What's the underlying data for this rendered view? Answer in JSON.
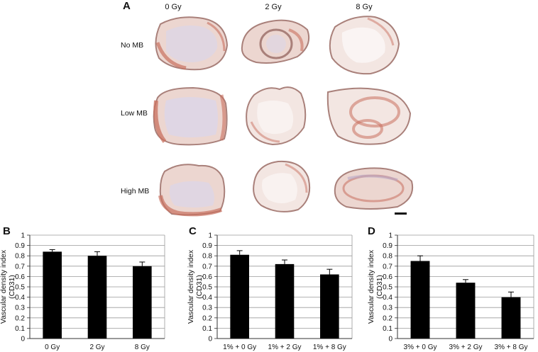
{
  "panel_a": {
    "letter": "A",
    "columns": [
      "0 Gy",
      "2 Gy",
      "8 Gy"
    ],
    "rows": [
      "No MB",
      "Low MB",
      "High MB"
    ]
  },
  "chart_data": [
    {
      "panel": "B",
      "type": "bar",
      "categories": [
        "0 Gy",
        "2 Gy",
        "8 Gy"
      ],
      "values": [
        0.84,
        0.8,
        0.7
      ],
      "errors": [
        0.02,
        0.04,
        0.04
      ],
      "ylabel": "Vascular density index (CD31)",
      "ylim": [
        0,
        1
      ],
      "yticks": [
        "0",
        "0.1",
        "0.2",
        "0.3",
        "0.4",
        "0.5",
        "0.6",
        "0.7",
        "0.8",
        "0.9",
        "1"
      ],
      "grid": true,
      "bar_color": "#000000"
    },
    {
      "panel": "C",
      "type": "bar",
      "categories": [
        "1% + 0 Gy",
        "1% + 2 Gy",
        "1% + 8 Gy"
      ],
      "values": [
        0.81,
        0.72,
        0.62
      ],
      "errors": [
        0.04,
        0.04,
        0.05
      ],
      "ylabel": "Vascular density index (CD31)",
      "ylim": [
        0,
        1
      ],
      "yticks": [
        "0",
        "0.1",
        "0.2",
        "0.3",
        "0.4",
        "0.5",
        "0.6",
        "0.7",
        "0.8",
        "0.9",
        "1"
      ],
      "grid": true,
      "bar_color": "#000000"
    },
    {
      "panel": "D",
      "type": "bar",
      "categories": [
        "3% + 0 Gy",
        "3% + 2 Gy",
        "3% + 8 Gy"
      ],
      "values": [
        0.75,
        0.54,
        0.4
      ],
      "errors": [
        0.05,
        0.03,
        0.05
      ],
      "ylabel": "Vascular density index (CD31)",
      "ylim": [
        0,
        1
      ],
      "yticks": [
        "0",
        "0.1",
        "0.2",
        "0.3",
        "0.4",
        "0.5",
        "0.6",
        "0.7",
        "0.8",
        "0.9",
        "1"
      ],
      "grid": true,
      "bar_color": "#000000"
    }
  ],
  "colors": {
    "tissue_fill": "#ecd6d0",
    "tissue_stain": "#c9705f",
    "tissue_edge": "#a9807a"
  }
}
